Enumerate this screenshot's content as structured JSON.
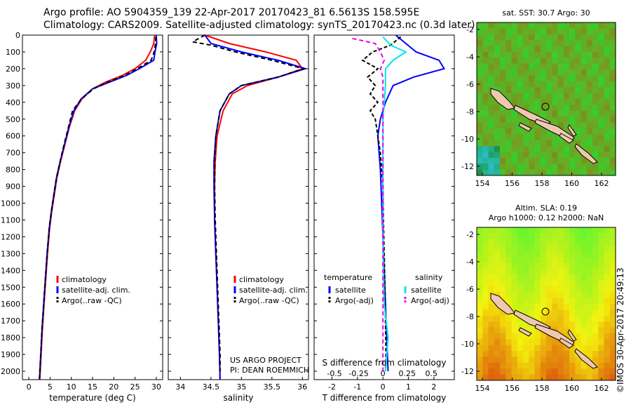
{
  "header": {
    "line1": "Argo profile: AO 5904359_139 22-Apr-2017 20170423_81 6.5613S 158.595E",
    "line2": "Climatology: CARS2009. Satellite-adjusted climatology: synTS_20170423.nc (0.3d later)"
  },
  "side_label": "©IMOS 30-Apr-2017 20:49:13",
  "colors": {
    "climatology": "#ff0000",
    "satellite": "#0000ff",
    "argo": "#000000",
    "sat_salinity": "#00e5ee",
    "argo_salinity": "#ee00ee"
  },
  "chart_data": [
    {
      "type": "line",
      "xlabel": "temperature (deg C)",
      "ylim": [
        2050,
        0
      ],
      "xlim": [
        -1.5,
        31.5
      ],
      "x_ticks": [
        "0",
        "5",
        "10",
        "15",
        "20",
        "25",
        "30"
      ],
      "x_tick_values": [
        0,
        5,
        10,
        15,
        20,
        25,
        30
      ],
      "y_ticks": [
        "0",
        "100",
        "200",
        "300",
        "400",
        "500",
        "600",
        "700",
        "800",
        "900",
        "1000",
        "1100",
        "1200",
        "1300",
        "1400",
        "1500",
        "1600",
        "1700",
        "1800",
        "1900",
        "2000"
      ],
      "legend": [
        "climatology",
        "satellite-adj. clim.",
        "Argo(..raw -QC)"
      ],
      "series": [
        {
          "name": "climatology",
          "color": "#ff0000",
          "dash": "",
          "points": [
            [
              29.6,
              0
            ],
            [
              29.4,
              50
            ],
            [
              28.6,
              100
            ],
            [
              27.5,
              150
            ],
            [
              25,
              200
            ],
            [
              22,
              240
            ],
            [
              18,
              280
            ],
            [
              15,
              320
            ],
            [
              12.5,
              380
            ],
            [
              10.8,
              450
            ],
            [
              9.5,
              550
            ],
            [
              8.5,
              650
            ],
            [
              7.5,
              750
            ],
            [
              6.6,
              850
            ],
            [
              6,
              950
            ],
            [
              5.4,
              1050
            ],
            [
              4.9,
              1150
            ],
            [
              4.4,
              1300
            ],
            [
              4,
              1450
            ],
            [
              3.6,
              1600
            ],
            [
              3.2,
              1750
            ],
            [
              2.9,
              1900
            ],
            [
              2.6,
              2050
            ]
          ]
        },
        {
          "name": "satellite-adj. clim.",
          "color": "#0000ff",
          "dash": "",
          "points": [
            [
              30,
              0
            ],
            [
              30.1,
              50
            ],
            [
              29.7,
              100
            ],
            [
              29.4,
              150
            ],
            [
              26,
              200
            ],
            [
              23,
              240
            ],
            [
              19,
              280
            ],
            [
              15,
              320
            ],
            [
              12.3,
              380
            ],
            [
              10.6,
              450
            ],
            [
              9.4,
              550
            ],
            [
              8.4,
              650
            ],
            [
              7.4,
              750
            ],
            [
              6.5,
              850
            ],
            [
              5.9,
              950
            ],
            [
              5.3,
              1050
            ],
            [
              4.8,
              1150
            ],
            [
              4.3,
              1300
            ],
            [
              3.9,
              1450
            ],
            [
              3.5,
              1600
            ],
            [
              3.1,
              1750
            ],
            [
              2.8,
              1900
            ],
            [
              2.5,
              2050
            ]
          ]
        },
        {
          "name": "Argo(..raw -QC)",
          "color": "#000000",
          "dash": "6,4",
          "points": [
            [
              29.9,
              10
            ],
            [
              29.8,
              50
            ],
            [
              29.5,
              100
            ],
            [
              28.8,
              150
            ],
            [
              25.5,
              200
            ],
            [
              22.5,
              240
            ],
            [
              18.5,
              280
            ],
            [
              15.2,
              320
            ],
            [
              12.4,
              380
            ],
            [
              10.3,
              450
            ],
            [
              9.3,
              550
            ],
            [
              8.3,
              650
            ],
            [
              7.4,
              750
            ],
            [
              6.5,
              850
            ],
            [
              5.9,
              950
            ],
            [
              5.3,
              1050
            ],
            [
              4.8,
              1150
            ],
            [
              4.3,
              1300
            ],
            [
              3.9,
              1450
            ],
            [
              3.5,
              1600
            ],
            [
              3.1,
              1750
            ],
            [
              2.8,
              1900
            ],
            [
              2.5,
              2050
            ]
          ]
        }
      ]
    },
    {
      "type": "line",
      "xlabel": "salinity",
      "ylim": [
        2050,
        0
      ],
      "xlim": [
        33.8,
        36.1
      ],
      "x_ticks": [
        "34",
        "34.5",
        "35",
        "35.5",
        "36"
      ],
      "x_tick_values": [
        34,
        34.5,
        35,
        35.5,
        36
      ],
      "legend": [
        "climatology",
        "satellite-adj. clim.",
        "Argo(..raw -QC)"
      ],
      "annotation": [
        "US ARGO PROJECT",
        "PI: DEAN ROEMMICH"
      ],
      "series": [
        {
          "name": "climatology",
          "color": "#ff0000",
          "dash": "",
          "points": [
            [
              34.4,
              0
            ],
            [
              34.8,
              50
            ],
            [
              35.4,
              100
            ],
            [
              35.9,
              150
            ],
            [
              36,
              200
            ],
            [
              35.6,
              250
            ],
            [
              35.1,
              300
            ],
            [
              34.85,
              350
            ],
            [
              34.7,
              450
            ],
            [
              34.6,
              600
            ],
            [
              34.57,
              750
            ],
            [
              34.56,
              900
            ],
            [
              34.56,
              1100
            ],
            [
              34.58,
              1300
            ],
            [
              34.6,
              1500
            ],
            [
              34.62,
              1700
            ],
            [
              34.64,
              1900
            ],
            [
              34.65,
              2050
            ]
          ]
        },
        {
          "name": "satellite-adj. clim.",
          "color": "#0000ff",
          "dash": "",
          "points": [
            [
              34.4,
              0
            ],
            [
              34.5,
              50
            ],
            [
              35.0,
              100
            ],
            [
              35.6,
              150
            ],
            [
              36.05,
              200
            ],
            [
              35.6,
              250
            ],
            [
              35.0,
              300
            ],
            [
              34.8,
              350
            ],
            [
              34.65,
              450
            ],
            [
              34.58,
              600
            ],
            [
              34.55,
              750
            ],
            [
              34.55,
              900
            ],
            [
              34.56,
              1100
            ],
            [
              34.58,
              1300
            ],
            [
              34.6,
              1500
            ],
            [
              34.62,
              1700
            ],
            [
              34.64,
              1900
            ],
            [
              34.65,
              2050
            ]
          ]
        },
        {
          "name": "Argo(..raw -QC)",
          "color": "#000000",
          "dash": "6,4",
          "points": [
            [
              34.4,
              0
            ],
            [
              34.2,
              40
            ],
            [
              34.5,
              60
            ],
            [
              34.9,
              100
            ],
            [
              35.5,
              150
            ],
            [
              36.02,
              200
            ],
            [
              35.6,
              250
            ],
            [
              35.0,
              300
            ],
            [
              34.8,
              350
            ],
            [
              34.65,
              450
            ],
            [
              34.58,
              600
            ],
            [
              34.56,
              750
            ],
            [
              34.56,
              900
            ],
            [
              34.57,
              1100
            ],
            [
              34.59,
              1300
            ],
            [
              34.61,
              1500
            ],
            [
              34.63,
              1700
            ],
            [
              34.65,
              1900
            ],
            [
              34.65,
              2000
            ]
          ]
        }
      ]
    },
    {
      "type": "line",
      "xlabel": "T difference from climatology",
      "xlabel2": "S difference from climatology",
      "ylim": [
        2050,
        0
      ],
      "xlim": [
        -2.7,
        2.8
      ],
      "x_ticks": [
        "-2",
        "-1",
        "0",
        "1",
        "2"
      ],
      "x_tick_values": [
        -2,
        -1,
        0,
        1,
        2
      ],
      "x2_ticks": [
        "-0.5",
        "-0.25",
        "0",
        "0.25",
        "0.5"
      ],
      "x2_tick_values": [
        -1.9,
        -0.95,
        0,
        0.95,
        1.9
      ],
      "legend_headers": [
        "temperature",
        "salinity"
      ],
      "legend": [
        "satellite",
        "Argo(-adj)",
        "satellite",
        "Argo(-adj)"
      ],
      "series": [
        {
          "name": "satellite",
          "color": "#0000ff",
          "dash": "",
          "points": [
            [
              0.5,
              0
            ],
            [
              0.9,
              50
            ],
            [
              1.3,
              100
            ],
            [
              2.2,
              150
            ],
            [
              2.4,
              200
            ],
            [
              1.2,
              250
            ],
            [
              0.4,
              300
            ],
            [
              0.1,
              400
            ],
            [
              -0.1,
              500
            ],
            [
              -0.2,
              600
            ],
            [
              -0.15,
              700
            ],
            [
              -0.1,
              800
            ],
            [
              -0.05,
              1000
            ],
            [
              0,
              1200
            ],
            [
              0.05,
              1400
            ],
            [
              0.1,
              1600
            ],
            [
              0.15,
              1800
            ],
            [
              0.2,
              2000
            ]
          ]
        },
        {
          "name": "Argo(-adj)",
          "color": "#000000",
          "dash": "5,3",
          "points": [
            [
              0.7,
              10
            ],
            [
              0.3,
              60
            ],
            [
              -0.4,
              100
            ],
            [
              -0.8,
              150
            ],
            [
              -0.2,
              200
            ],
            [
              -0.6,
              250
            ],
            [
              -0.3,
              300
            ],
            [
              -0.5,
              350
            ],
            [
              -0.2,
              400
            ],
            [
              -0.5,
              450
            ],
            [
              -0.3,
              500
            ],
            [
              -0.2,
              600
            ],
            [
              -0.1,
              700
            ],
            [
              0,
              900
            ],
            [
              0.02,
              1100
            ],
            [
              0.05,
              1300
            ],
            [
              0.08,
              1500
            ],
            [
              0.1,
              1700
            ],
            [
              0.12,
              1900
            ],
            [
              0.1,
              2000
            ]
          ]
        },
        {
          "name": "satellite",
          "color": "#00e5ee",
          "dash": "",
          "points": [
            [
              0,
              10
            ],
            [
              0.3,
              60
            ],
            [
              0.9,
              100
            ],
            [
              0.4,
              150
            ],
            [
              0.1,
              200
            ],
            [
              0.1,
              300
            ],
            [
              0,
              500
            ],
            [
              0,
              800
            ],
            [
              0,
              1100
            ],
            [
              0.02,
              1400
            ],
            [
              0.05,
              1600
            ],
            [
              0.2,
              1800
            ],
            [
              0.1,
              2000
            ]
          ]
        },
        {
          "name": "Argo(-adj)",
          "color": "#ee00ee",
          "dash": "6,4",
          "points": [
            [
              -1.2,
              20
            ],
            [
              -0.3,
              50
            ],
            [
              -0.1,
              100
            ],
            [
              0.05,
              150
            ],
            [
              -0.1,
              200
            ],
            [
              0,
              250
            ],
            [
              0,
              400
            ],
            [
              0,
              700
            ],
            [
              0,
              1000
            ],
            [
              0,
              1300
            ],
            [
              0,
              1600
            ],
            [
              0,
              1900
            ],
            [
              0,
              2000
            ]
          ]
        }
      ]
    }
  ],
  "maps": {
    "sst": {
      "title": "sat. SST: 30.7 Argo: 30",
      "x_ticks": [
        "154",
        "156",
        "158",
        "160",
        "162"
      ],
      "y_ticks": [
        "-2",
        "-4",
        "-6",
        "-8",
        "-10",
        "-12"
      ]
    },
    "sla": {
      "title1": "Altim. SLA: 0.19",
      "title2": "Argo h1000: 0.12 h2000: NaN",
      "x_ticks": [
        "154",
        "156",
        "158",
        "160",
        "162"
      ],
      "y_ticks": [
        "-2",
        "-4",
        "-6",
        "-8",
        "-10",
        "-12"
      ]
    }
  }
}
